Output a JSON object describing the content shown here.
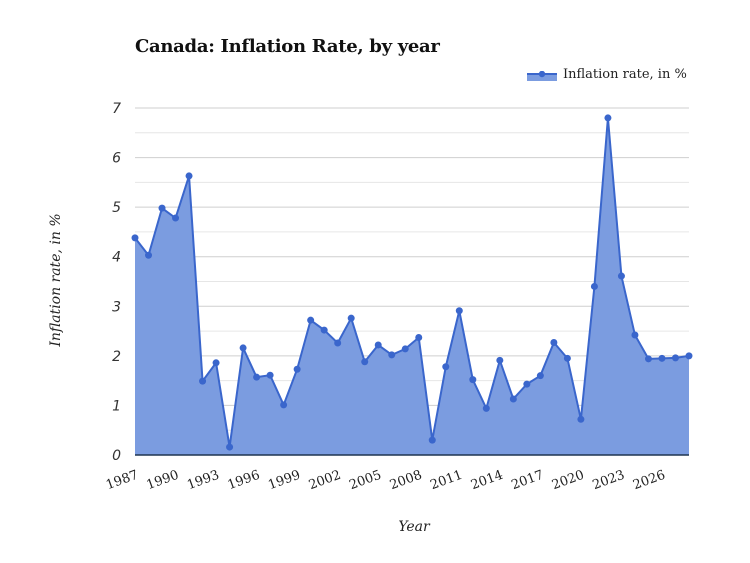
{
  "chart_data": {
    "type": "area",
    "title": "Canada: Inflation Rate, by year",
    "xlabel": "Year",
    "ylabel": "Inflation rate, in %",
    "ylim": [
      0,
      7
    ],
    "yticks": [
      0,
      1,
      2,
      3,
      4,
      5,
      6,
      7
    ],
    "xticks": [
      "1987",
      "1990",
      "1993",
      "1996",
      "1999",
      "2002",
      "2005",
      "2008",
      "2011",
      "2014",
      "2017",
      "2020",
      "2023",
      "2026"
    ],
    "grid": true,
    "legend_position": "top-right",
    "x": [
      1987,
      1988,
      1989,
      1990,
      1991,
      1992,
      1993,
      1994,
      1995,
      1996,
      1997,
      1998,
      1999,
      2000,
      2001,
      2002,
      2003,
      2004,
      2005,
      2006,
      2007,
      2008,
      2009,
      2010,
      2011,
      2012,
      2013,
      2014,
      2015,
      2016,
      2017,
      2018,
      2019,
      2020,
      2021,
      2022,
      2023,
      2024,
      2025,
      2026,
      2027,
      2028
    ],
    "series": [
      {
        "name": "Inflation rate, in %",
        "color": "#3a66cc",
        "fill": "#7b9ce0",
        "values": [
          4.38,
          4.03,
          4.98,
          4.78,
          5.63,
          1.49,
          1.86,
          0.16,
          2.16,
          1.57,
          1.61,
          1.01,
          1.73,
          2.72,
          2.52,
          2.26,
          2.76,
          1.88,
          2.22,
          2.02,
          2.14,
          2.37,
          0.3,
          1.78,
          2.91,
          1.52,
          0.94,
          1.91,
          1.13,
          1.43,
          1.6,
          2.27,
          1.95,
          0.72,
          3.4,
          6.8,
          3.61,
          2.42,
          1.94,
          1.95,
          1.96,
          2.0
        ]
      }
    ]
  },
  "header": {
    "title": "Canada: Inflation Rate, by year"
  },
  "legend": {
    "label": "Inflation rate, in %"
  },
  "axes": {
    "xlabel": "Year",
    "ylabel": "Inflation rate, in %"
  }
}
